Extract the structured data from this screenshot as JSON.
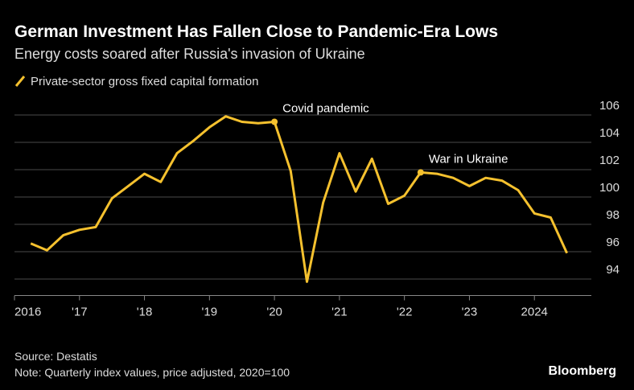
{
  "chart_data": {
    "type": "line",
    "title": "German Investment Has Fallen Close to Pandemic-Era Lows",
    "subtitle": "Energy costs soared after Russia's invasion of Ukraine",
    "source": "Source: Destatis",
    "note": "Note: Quarterly index values, price adjusted, 2020=100",
    "brand": "Bloomberg",
    "x": [
      2016.25,
      2016.5,
      2016.75,
      2017,
      2017.25,
      2017.5,
      2017.75,
      2018,
      2018.25,
      2018.5,
      2018.75,
      2019,
      2019.25,
      2019.5,
      2019.75,
      2020,
      2020.25,
      2020.5,
      2020.75,
      2021,
      2021.25,
      2021.5,
      2021.75,
      2022,
      2022.25,
      2022.5,
      2022.75,
      2023,
      2023.25,
      2023.5,
      2023.75,
      2024,
      2024.25,
      2024.5
    ],
    "series": [
      {
        "name": "Private-sector gross fixed capital formation",
        "color": "#f5c12e",
        "values": [
          96.6,
          96.1,
          97.2,
          97.6,
          97.8,
          99.9,
          100.8,
          101.7,
          101.1,
          103.2,
          104.1,
          105.1,
          105.9,
          105.5,
          105.4,
          105.5,
          101.9,
          93.8,
          99.6,
          103.2,
          100.4,
          102.8,
          99.5,
          100.1,
          101.8,
          101.7,
          101.4,
          100.8,
          101.4,
          101.2,
          100.5,
          98.8,
          98.5,
          95.9
        ]
      }
    ],
    "annotations": [
      {
        "text": "Covid pandemic",
        "x": 2020,
        "y": 105.5
      },
      {
        "text": "War in Ukraine",
        "x": 2022.25,
        "y": 101.8
      }
    ],
    "xlim": [
      2016,
      2025
    ],
    "xticks": [
      {
        "value": 2016,
        "label": "2016"
      },
      {
        "value": 2017,
        "label": "'17"
      },
      {
        "value": 2018,
        "label": "'18"
      },
      {
        "value": 2019,
        "label": "'19"
      },
      {
        "value": 2020,
        "label": "'20"
      },
      {
        "value": 2021,
        "label": "'21"
      },
      {
        "value": 2022,
        "label": "'22"
      },
      {
        "value": 2023,
        "label": "'23"
      },
      2024
    ],
    "ylim": [
      93.5,
      106.5
    ],
    "yticks": [
      94,
      96,
      98,
      100,
      102,
      104,
      106
    ],
    "grid": true
  }
}
